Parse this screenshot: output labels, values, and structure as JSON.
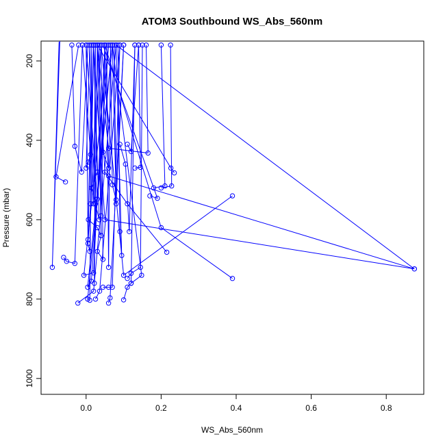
{
  "chart_data": {
    "type": "line",
    "title": "ATOM3 Southbound WS_Abs_560nm",
    "xlabel": "WS_Abs_560nm",
    "ylabel": "Pressure (mbar)",
    "xlim": [
      -0.12,
      0.9
    ],
    "ylim": [
      1040,
      150
    ],
    "y_reversed": true,
    "x_ticks": [
      "0.0",
      "0.2",
      "0.4",
      "0.6",
      "0.8"
    ],
    "y_ticks": [
      "200",
      "400",
      "600",
      "800",
      "1000"
    ],
    "grid": false,
    "legend": "none",
    "series_color": "#0000ff",
    "marker": "open-circle",
    "line_series": [
      {
        "x": [
          -0.07,
          -0.09,
          -0.072
        ],
        "y": [
          150,
          720,
          152
        ]
      },
      {
        "x": [
          -0.02,
          -0.08,
          -0.055
        ],
        "y": [
          160,
          492,
          505
        ]
      },
      {
        "x": [
          -0.06,
          -0.052,
          -0.03,
          -0.01
        ],
        "y": [
          695,
          705,
          710,
          160
        ]
      },
      {
        "x": [
          -0.038,
          -0.03,
          -0.012,
          0.005
        ],
        "y": [
          160,
          415,
          480,
          160
        ]
      },
      {
        "x": [
          -0.01,
          0.012,
          0.006,
          0.0,
          0.01
        ],
        "y": [
          160,
          436,
          455,
          470,
          160
        ]
      },
      {
        "x": [
          0.0,
          0.03,
          0.012,
          0.02
        ],
        "y": [
          160,
          548,
          560,
          160
        ]
      },
      {
        "x": [
          0.02,
          0.006,
          0.03,
          0.04,
          0.035
        ],
        "y": [
          160,
          600,
          620,
          640,
          160
        ]
      },
      {
        "x": [
          0.04,
          0.005,
          0.01,
          0.02
        ],
        "y": [
          160,
          660,
          680,
          160
        ]
      },
      {
        "x": [
          0.05,
          0.02,
          -0.006,
          0.06
        ],
        "y": [
          160,
          734,
          740,
          160
        ]
      },
      {
        "x": [
          0.06,
          0.014,
          0.004,
          0.07
        ],
        "y": [
          160,
          755,
          770,
          160
        ]
      },
      {
        "x": [
          0.07,
          0.004,
          0.01,
          0.015
        ],
        "y": [
          160,
          800,
          803,
          160
        ]
      },
      {
        "x": [
          -0.022,
          0.02,
          0.08
        ],
        "y": [
          810,
          780,
          160
        ]
      },
      {
        "x": [
          0.025,
          0.036,
          0.09
        ],
        "y": [
          800,
          780,
          160
        ]
      },
      {
        "x": [
          0.06,
          0.064,
          0.1
        ],
        "y": [
          810,
          797,
          160
        ]
      },
      {
        "x": [
          0.1,
          0.11,
          0.12,
          0.13
        ],
        "y": [
          802,
          770,
          760,
          160
        ]
      },
      {
        "x": [
          0.045,
          0.06,
          0.07,
          0.09
        ],
        "y": [
          770,
          770,
          770,
          160
        ]
      },
      {
        "x": [
          0.15,
          0.145,
          0.12,
          0.11
        ],
        "y": [
          160,
          720,
          735,
          748
        ]
      },
      {
        "x": [
          0.12,
          0.148,
          0.07
        ],
        "y": [
          760,
          740,
          160
        ]
      },
      {
        "x": [
          0.13,
          0.115,
          0.105,
          0.09
        ],
        "y": [
          160,
          630,
          460,
          410
        ]
      },
      {
        "x": [
          0.11,
          0.12,
          0.14
        ],
        "y": [
          410,
          428,
          160
        ]
      },
      {
        "x": [
          0.14,
          0.145,
          0.13
        ],
        "y": [
          160,
          468,
          470
        ]
      },
      {
        "x": [
          0.16,
          0.165,
          0.06,
          0.03
        ],
        "y": [
          160,
          432,
          420,
          160
        ]
      },
      {
        "x": [
          0.17,
          0.19,
          0.045
        ],
        "y": [
          540,
          546,
          160
        ]
      },
      {
        "x": [
          0.2,
          0.21,
          0.18
        ],
        "y": [
          160,
          515,
          520
        ]
      },
      {
        "x": [
          0.03,
          0.226,
          0.235
        ],
        "y": [
          160,
          470,
          482
        ]
      },
      {
        "x": [
          0.225,
          0.228,
          0.2
        ],
        "y": [
          160,
          515,
          520
        ]
      },
      {
        "x": [
          0.215,
          0.11,
          0.05,
          0.03
        ],
        "y": [
          682,
          560,
          480,
          160
        ]
      },
      {
        "x": [
          0.39,
          0.1,
          0.04
        ],
        "y": [
          540,
          740,
          160
        ]
      },
      {
        "x": [
          0.39,
          0.2,
          0.05
        ],
        "y": [
          748,
          620,
          160
        ]
      },
      {
        "x": [
          0.06,
          0.875,
          0.08
        ],
        "y": [
          490,
          724,
          160
        ]
      },
      {
        "x": [
          0.875,
          0.05,
          0.02
        ],
        "y": [
          724,
          600,
          160
        ]
      },
      {
        "x": [
          0.02,
          0.03,
          0.015,
          0.025,
          0.035,
          0.02
        ],
        "y": [
          160,
          480,
          520,
          560,
          600,
          160
        ]
      },
      {
        "x": [
          0.03,
          0.04,
          0.03,
          0.045,
          0.04
        ],
        "y": [
          160,
          640,
          680,
          700,
          160
        ]
      },
      {
        "x": [
          0.05,
          0.045,
          0.06,
          0.05
        ],
        "y": [
          160,
          430,
          470,
          160
        ]
      },
      {
        "x": [
          0.065,
          0.07,
          0.08,
          0.07
        ],
        "y": [
          160,
          512,
          550,
          160
        ]
      },
      {
        "x": [
          0.085,
          0.09,
          0.095,
          0.08
        ],
        "y": [
          160,
          630,
          690,
          160
        ]
      },
      {
        "x": [
          0.01,
          0.02,
          0.025
        ],
        "y": [
          160,
          560,
          160
        ]
      },
      {
        "x": [
          0.035,
          0.04,
          0.05
        ],
        "y": [
          160,
          590,
          160
        ]
      },
      {
        "x": [
          0.055,
          0.06,
          0.065
        ],
        "y": [
          160,
          720,
          160
        ]
      },
      {
        "x": [
          0.075,
          0.08,
          0.1
        ],
        "y": [
          160,
          560,
          160
        ]
      },
      {
        "x": [
          0.0,
          0.005,
          0.015
        ],
        "y": [
          160,
          650,
          160
        ]
      },
      {
        "x": [
          0.025,
          0.022,
          0.03
        ],
        "y": [
          160,
          760,
          160
        ]
      }
    ]
  }
}
